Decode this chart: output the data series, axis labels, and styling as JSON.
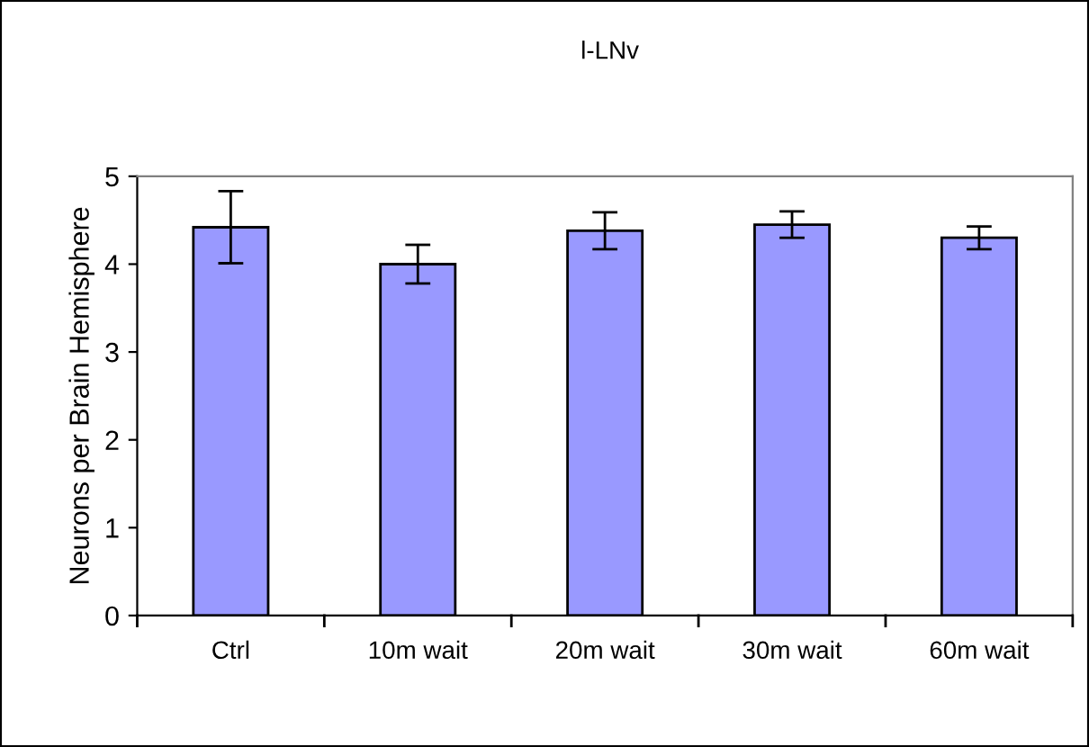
{
  "chart_data": {
    "type": "bar",
    "title": "l-LNv",
    "ylabel": "Neurons per Brain Hemisphere",
    "categories": [
      "Ctrl",
      "10m wait",
      "20m wait",
      "30m wait",
      "60m wait"
    ],
    "values": [
      4.42,
      4.0,
      4.38,
      4.45,
      4.3
    ],
    "errors": [
      0.41,
      0.22,
      0.21,
      0.15,
      0.13
    ],
    "color": "#9999ff",
    "ylim": [
      0,
      5
    ],
    "yticks": [
      0,
      1,
      2,
      3,
      4,
      5
    ],
    "grid": false,
    "legend": false
  }
}
